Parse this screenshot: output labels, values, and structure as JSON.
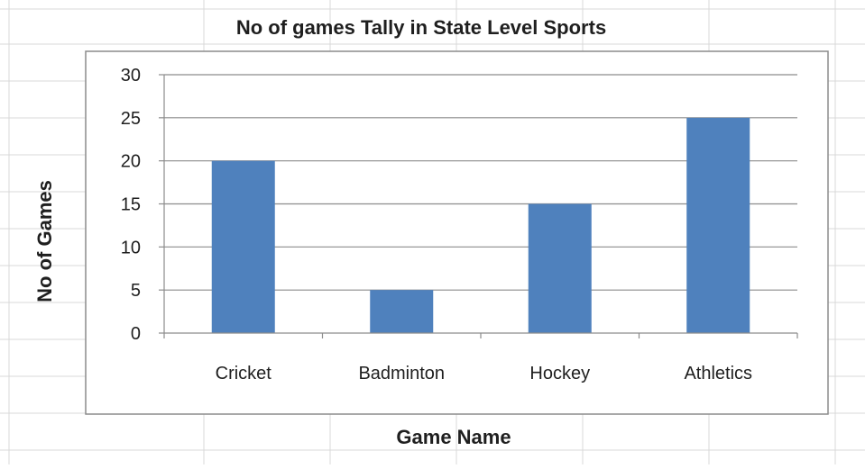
{
  "chart_data": {
    "type": "bar",
    "title": "No of games Tally in State Level Sports",
    "xlabel": "Game Name",
    "ylabel": "No of Games",
    "categories": [
      "Cricket",
      "Badminton",
      "Hockey",
      "Athletics"
    ],
    "values": [
      20,
      5,
      15,
      25
    ],
    "ylim": [
      0,
      30
    ],
    "yticks": [
      "0",
      "5",
      "10",
      "15",
      "20",
      "25",
      "30"
    ],
    "grid": true,
    "legend": "none",
    "colors": {
      "bar": "#4f81bd",
      "grid": "#8c8c8c",
      "sheet_grid": "#d9d9d9",
      "plot_border": "#8c8c8c",
      "text": "#1f1f1f"
    }
  }
}
